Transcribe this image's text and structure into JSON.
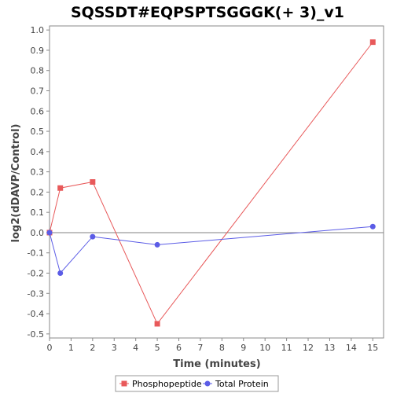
{
  "chart_data": {
    "type": "line",
    "title": "SQSSDT#EQPSPTSGGGK(+ 3)_v1",
    "xlabel": "Time (minutes)",
    "ylabel": "log2(dDAVP/Control)",
    "xlim": [
      0,
      15.5
    ],
    "ylim": [
      -0.52,
      1.02
    ],
    "xticks": [
      0,
      1,
      2,
      3,
      4,
      5,
      6,
      7,
      8,
      9,
      10,
      11,
      12,
      13,
      14,
      15
    ],
    "yticks": [
      -0.5,
      -0.4,
      -0.3,
      -0.2,
      -0.1,
      0.0,
      0.1,
      0.2,
      0.3,
      0.4,
      0.5,
      0.6,
      0.7,
      0.8,
      0.9,
      1.0
    ],
    "ytick_labels": [
      "-0.5",
      "-0.4",
      "-0.3",
      "-0.2",
      "-0.1",
      "0.0",
      "0.1",
      "0.2",
      "0.3",
      "0.4",
      "0.5",
      "0.6",
      "0.7",
      "0.8",
      "0.9",
      "1.0"
    ],
    "zero_line": true,
    "grid": false,
    "legend_position": "bottom",
    "series": [
      {
        "name": "Phosphopeptide",
        "color": "#e8595a",
        "marker": "square",
        "x": [
          0,
          0.5,
          2,
          5,
          15
        ],
        "y": [
          0.0,
          0.22,
          0.25,
          -0.45,
          0.94
        ]
      },
      {
        "name": "Total Protein",
        "color": "#5b5ce6",
        "marker": "circle",
        "x": [
          0,
          0.5,
          2,
          5,
          15
        ],
        "y": [
          0.0,
          -0.2,
          -0.02,
          -0.06,
          0.03
        ]
      }
    ]
  }
}
